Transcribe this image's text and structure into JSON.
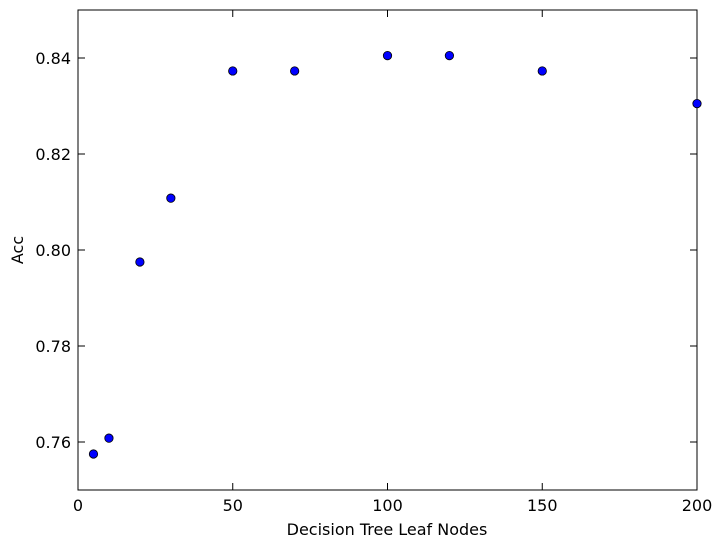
{
  "chart_data": {
    "type": "scatter",
    "title": "",
    "xlabel": "Decision Tree Leaf Nodes",
    "ylabel": "Acc",
    "xlim": [
      0,
      200
    ],
    "ylim": [
      0.75,
      0.85
    ],
    "xticks": [
      0,
      50,
      100,
      150,
      200
    ],
    "yticks": [
      0.76,
      0.78,
      0.8,
      0.82,
      0.84
    ],
    "xtick_labels": [
      "0",
      "50",
      "100",
      "150",
      "200"
    ],
    "ytick_labels": [
      "0.76",
      "0.78",
      "0.80",
      "0.82",
      "0.84"
    ],
    "grid": false,
    "legend": "none",
    "series": [
      {
        "color": "#0000ff",
        "points": [
          {
            "x": 5,
            "y": 0.7575
          },
          {
            "x": 10,
            "y": 0.7608
          },
          {
            "x": 20,
            "y": 0.7975
          },
          {
            "x": 30,
            "y": 0.8108
          },
          {
            "x": 50,
            "y": 0.8373
          },
          {
            "x": 70,
            "y": 0.8373
          },
          {
            "x": 100,
            "y": 0.8405
          },
          {
            "x": 120,
            "y": 0.8405
          },
          {
            "x": 150,
            "y": 0.8373
          },
          {
            "x": 200,
            "y": 0.8305
          }
        ]
      }
    ]
  }
}
